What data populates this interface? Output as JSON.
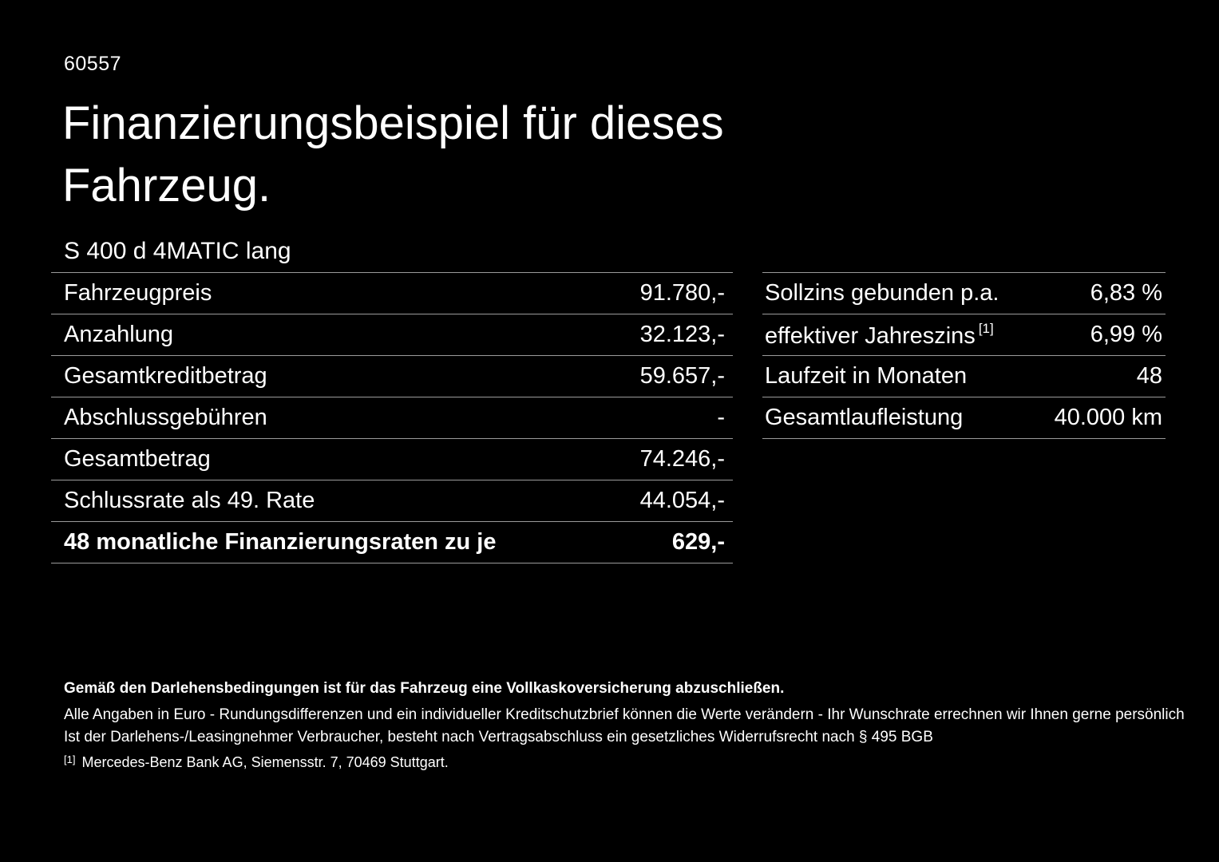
{
  "page": {
    "id_number": "60557",
    "title_line1": "Finanzierungsbeispiel für dieses",
    "title_line2": "Fahrzeug.",
    "vehicle_model": "S 400 d 4MATIC lang"
  },
  "left_table": {
    "rows": [
      {
        "label": "Fahrzeugpreis",
        "value": "91.780,-"
      },
      {
        "label": "Anzahlung",
        "value": "32.123,-"
      },
      {
        "label": "Gesamtkreditbetrag",
        "value": "59.657,-"
      },
      {
        "label": "Abschlussgebühren",
        "value": "-"
      },
      {
        "label": "Gesamtbetrag",
        "value": "74.246,-"
      },
      {
        "label": "Schlussrate als 49. Rate",
        "value": "44.054,-"
      },
      {
        "label": "48 monatliche Finanzierungsraten zu je",
        "value": "629,-"
      }
    ]
  },
  "right_table": {
    "rows": [
      {
        "label": "Sollzins gebunden p.a.",
        "value": "6,83 %"
      },
      {
        "label": "effektiver Jahreszins",
        "footnote_marker": "[1]",
        "value": "6,99 %"
      },
      {
        "label": "Laufzeit in Monaten",
        "value": "48"
      },
      {
        "label": "Gesamtlaufleistung",
        "value": "40.000 km"
      }
    ]
  },
  "footer": {
    "bold_note": "Gemäß den Darlehensbedingungen ist für das Fahrzeug eine Vollkaskoversicherung abzuschließen.",
    "note_line1": "Alle Angaben in Euro - Rundungsdifferenzen und ein individueller Kreditschutzbrief können die Werte verändern - Ihr Wunschrate errechnen wir Ihnen gerne persönlich",
    "note_line2": "Ist der Darlehens-/Leasingnehmer Verbraucher, besteht nach Vertragsabschluss ein gesetzliches Widerrufsrecht nach § 495 BGB",
    "footnote_marker": "[1]",
    "footnote_text": "Mercedes-Benz Bank AG, Siemensstr. 7, 70469 Stuttgart."
  },
  "colors": {
    "background": "#000000",
    "text": "#ffffff",
    "divider": "#9b9b9b"
  }
}
